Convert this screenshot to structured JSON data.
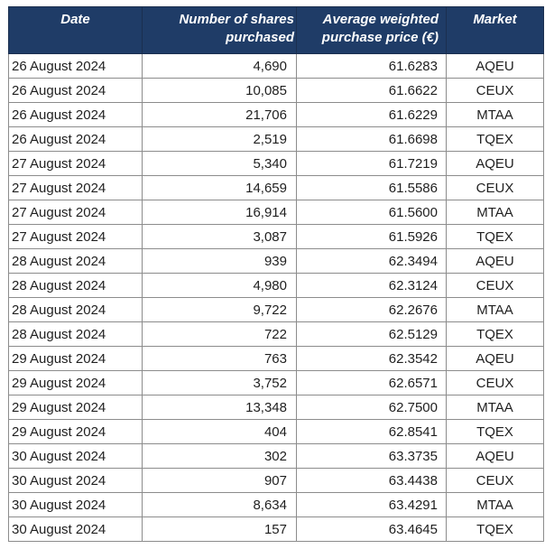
{
  "table": {
    "headers": {
      "date": "Date",
      "shares": "Number of shares purchased",
      "price": "Average weighted purchase price (€)",
      "market": "Market"
    },
    "rows": [
      {
        "date": "26 August 2024",
        "shares": "4,690",
        "price": "61.6283",
        "market": "AQEU"
      },
      {
        "date": "26 August 2024",
        "shares": "10,085",
        "price": "61.6622",
        "market": "CEUX"
      },
      {
        "date": "26 August 2024",
        "shares": "21,706",
        "price": "61.6229",
        "market": "MTAA"
      },
      {
        "date": "26 August 2024",
        "shares": "2,519",
        "price": "61.6698",
        "market": "TQEX"
      },
      {
        "date": "27 August 2024",
        "shares": "5,340",
        "price": "61.7219",
        "market": "AQEU"
      },
      {
        "date": "27 August 2024",
        "shares": "14,659",
        "price": "61.5586",
        "market": "CEUX"
      },
      {
        "date": "27 August 2024",
        "shares": "16,914",
        "price": "61.5600",
        "market": "MTAA"
      },
      {
        "date": "27 August 2024",
        "shares": "3,087",
        "price": "61.5926",
        "market": "TQEX"
      },
      {
        "date": "28 August 2024",
        "shares": "939",
        "price": "62.3494",
        "market": "AQEU"
      },
      {
        "date": "28 August 2024",
        "shares": "4,980",
        "price": "62.3124",
        "market": "CEUX"
      },
      {
        "date": "28 August 2024",
        "shares": "9,722",
        "price": "62.2676",
        "market": "MTAA"
      },
      {
        "date": "28 August 2024",
        "shares": "722",
        "price": "62.5129",
        "market": "TQEX"
      },
      {
        "date": "29 August 2024",
        "shares": "763",
        "price": "62.3542",
        "market": "AQEU"
      },
      {
        "date": "29 August 2024",
        "shares": "3,752",
        "price": "62.6571",
        "market": "CEUX"
      },
      {
        "date": "29 August 2024",
        "shares": "13,348",
        "price": "62.7500",
        "market": "MTAA"
      },
      {
        "date": "29 August 2024",
        "shares": "404",
        "price": "62.8541",
        "market": "TQEX"
      },
      {
        "date": "30 August 2024",
        "shares": "302",
        "price": "63.3735",
        "market": "AQEU"
      },
      {
        "date": "30 August 2024",
        "shares": "907",
        "price": "63.4438",
        "market": "CEUX"
      },
      {
        "date": "30 August 2024",
        "shares": "8,634",
        "price": "63.4291",
        "market": "MTAA"
      },
      {
        "date": "30 August 2024",
        "shares": "157",
        "price": "63.4645",
        "market": "TQEX"
      }
    ]
  },
  "colors": {
    "header_background": "#1f3c67",
    "header_text": "#ffffff",
    "grid_line": "#8c8c8c",
    "body_text": "#1f1f1f"
  }
}
